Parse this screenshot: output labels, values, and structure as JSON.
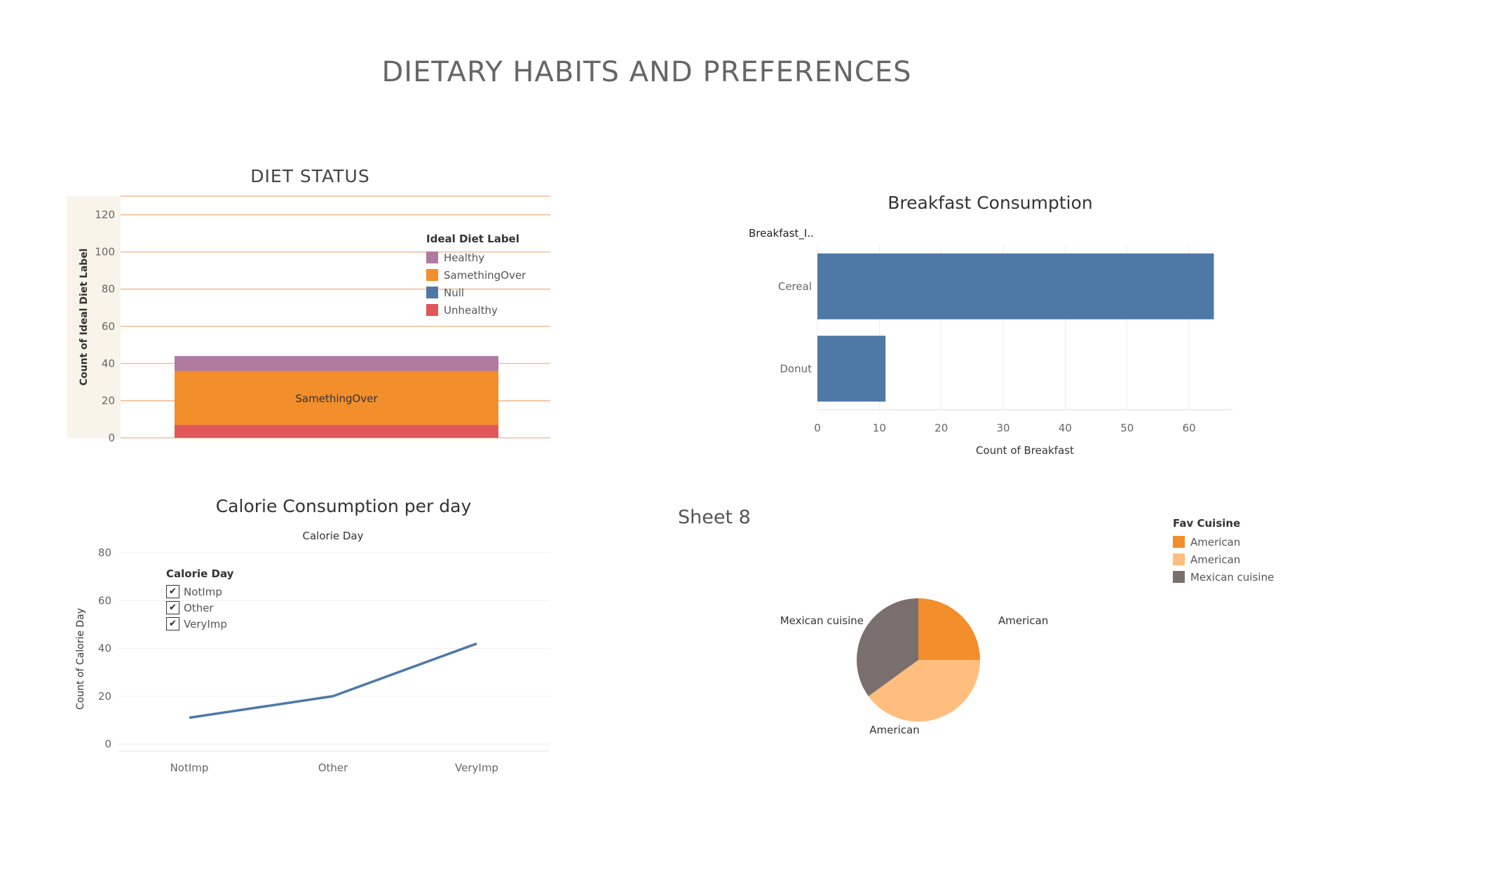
{
  "dashboard": {
    "title": "DIETARY HABITS AND PREFERENCES"
  },
  "chart_data": [
    {
      "id": "diet-status",
      "type": "bar",
      "stacked": true,
      "title": "DIET STATUS",
      "ylabel": "Count of Ideal Diet Label",
      "ylim": [
        0,
        130
      ],
      "yticks": [
        0,
        20,
        40,
        60,
        80,
        100,
        120
      ],
      "grid": true,
      "legend_position": "top-right",
      "legend_title": "Ideal Diet Label",
      "series": [
        {
          "name": "Unhealthy",
          "value": 7,
          "color": "#e15759"
        },
        {
          "name": "Null",
          "value": 0,
          "color": "#4e79a7"
        },
        {
          "name": "SamethingOver",
          "value": 29,
          "color": "#f28e2b",
          "mark_label": "SamethingOver"
        },
        {
          "name": "Healthy",
          "value": 8,
          "color": "#b07aa1"
        }
      ],
      "legend_order": [
        "Healthy",
        "SamethingOver",
        "Null",
        "Unhealthy"
      ]
    },
    {
      "id": "breakfast",
      "type": "bar",
      "orientation": "horizontal",
      "title": "Breakfast Consumption",
      "row_header": "Breakfast_I..",
      "xlabel": "Count of Breakfast",
      "xlim": [
        0,
        67
      ],
      "xticks": [
        0,
        10,
        20,
        30,
        40,
        50,
        60
      ],
      "categories": [
        "Cereal",
        "Donut"
      ],
      "values": [
        64,
        11
      ],
      "color": "#4e79a7"
    },
    {
      "id": "calorie",
      "type": "line",
      "title": "Calorie Consumption per day",
      "subtitle": "Calorie Day",
      "ylabel": "Count of Calorie Day",
      "ylim": [
        0,
        80
      ],
      "yticks": [
        0,
        20,
        40,
        60,
        80
      ],
      "categories": [
        "NotImp",
        "Other",
        "VeryImp"
      ],
      "values": [
        11,
        20,
        42
      ],
      "color": "#4e79a7",
      "filter": {
        "title": "Calorie Day",
        "items": [
          "NotImp",
          "Other",
          "VeryImp"
        ],
        "checked": [
          true,
          true,
          true
        ]
      }
    },
    {
      "id": "sheet8",
      "type": "pie",
      "title": "Sheet 8",
      "legend_title": "Fav Cuisine",
      "legend_position": "top-right",
      "slices": [
        {
          "label": "American",
          "value": 25,
          "color": "#f28e2b"
        },
        {
          "label": "American",
          "value": 40,
          "color": "#ffbe7d"
        },
        {
          "label": "Mexican cuisine",
          "value": 35,
          "color": "#7b6f6d"
        }
      ]
    }
  ]
}
